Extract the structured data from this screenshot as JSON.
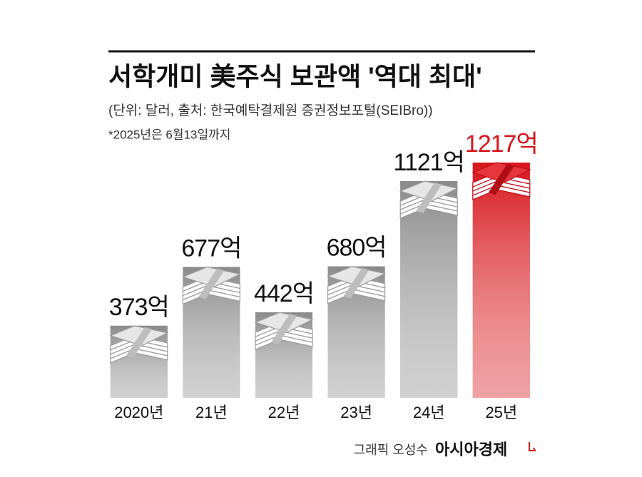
{
  "chart_data": {
    "type": "bar",
    "title": "서학개미 美주식 보관액 '역대 최대'",
    "subtitle": "(단위: 달러, 출처: 한국예탁결제원 증권정보포털(SEIBro))",
    "note": "*2025년은 6월13일까지",
    "categories": [
      "2020년",
      "21년",
      "22년",
      "23년",
      "24년",
      "25년"
    ],
    "values": [
      373,
      677,
      442,
      680,
      1121,
      1217
    ],
    "value_labels": [
      "373억",
      "677억",
      "442억",
      "680억",
      "1121억",
      "1217억"
    ],
    "colors": [
      "#8a8a8a",
      "#8a8a8a",
      "#8a8a8a",
      "#8a8a8a",
      "#8a8a8a",
      "#d7141a"
    ],
    "label_colors": [
      "#111111",
      "#111111",
      "#111111",
      "#111111",
      "#111111",
      "#d7141a"
    ],
    "credit": "그래픽 오성수",
    "brand": "아시아경제"
  }
}
